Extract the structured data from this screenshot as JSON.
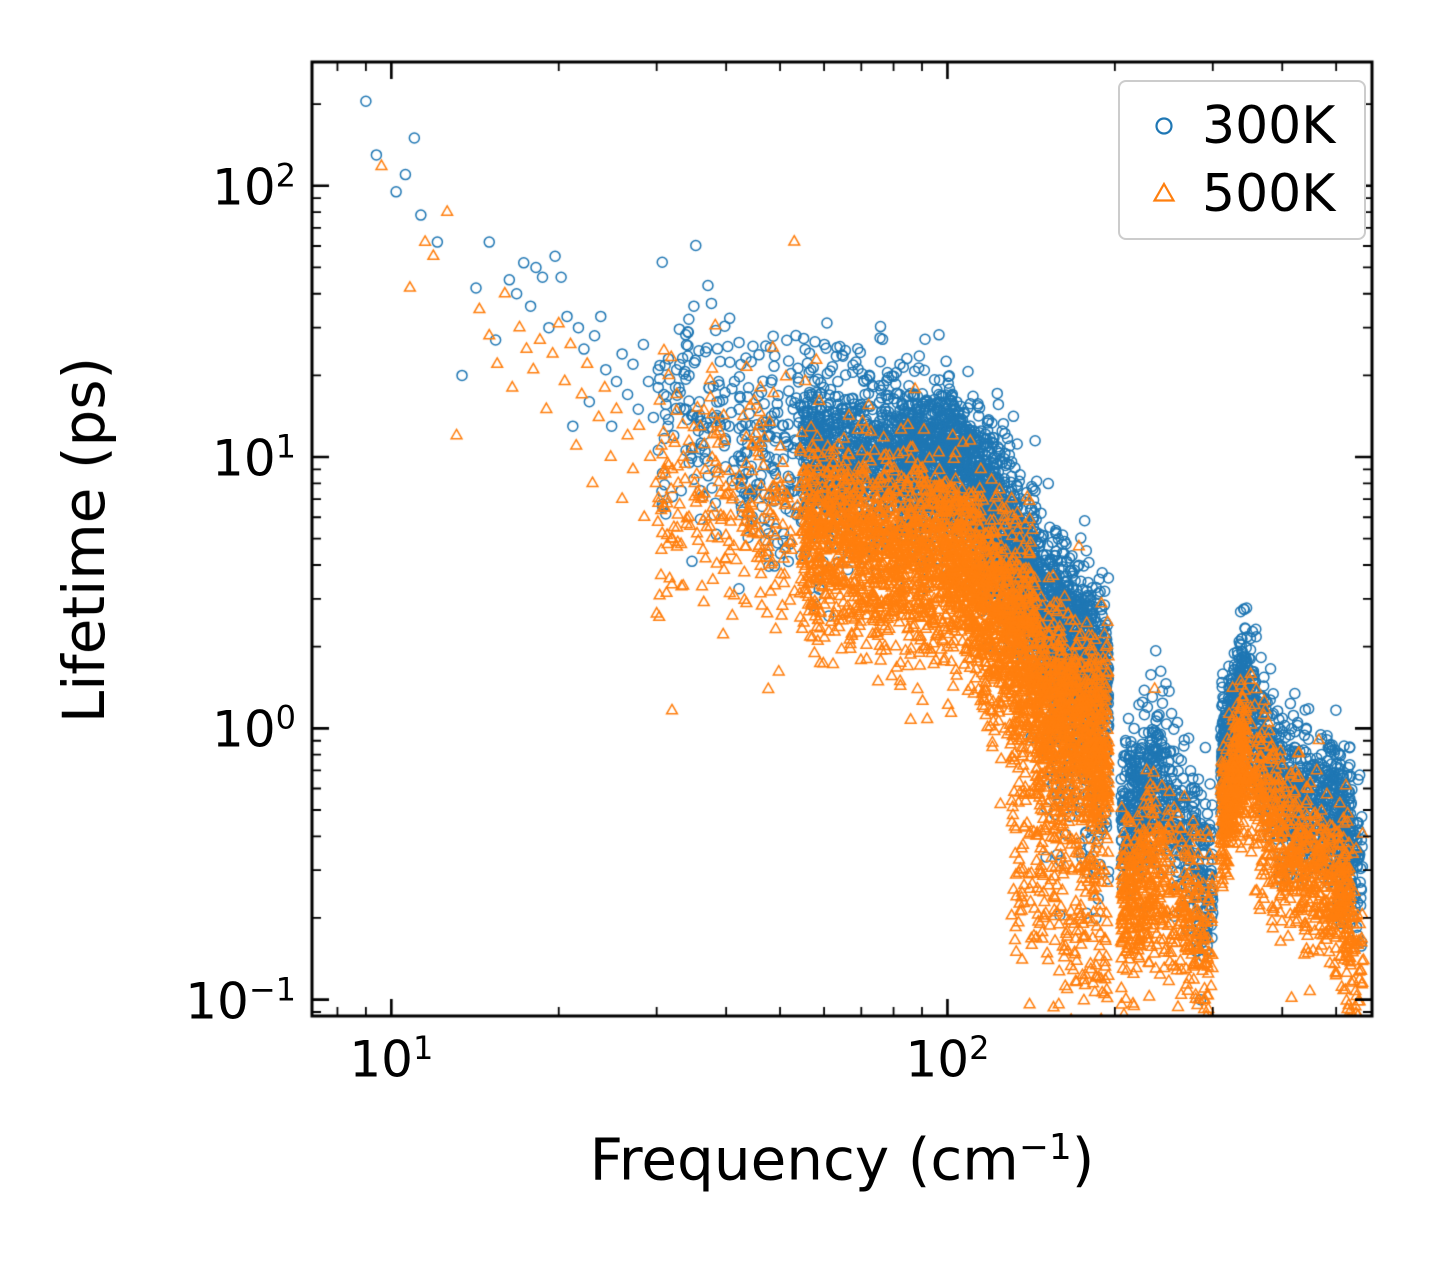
{
  "chart_data": {
    "type": "scatter",
    "title": "",
    "xlabel": "Frequency (cm⁻¹)",
    "xlabel_parts": {
      "pre": "Frequency (cm",
      "sup": "−1",
      "post": ")"
    },
    "ylabel": "Lifetime (ps)",
    "x_scale": "log",
    "y_scale": "log",
    "xlim": [
      7.2,
      580
    ],
    "ylim": [
      0.087,
      286
    ],
    "grid": false,
    "tick_direction": "in",
    "x_ticks": [
      {
        "value": 10,
        "base": "10",
        "exp": "1"
      },
      {
        "value": 100,
        "base": "10",
        "exp": "2"
      }
    ],
    "y_ticks": [
      {
        "value": 0.1,
        "base": "10",
        "exp": "−1"
      },
      {
        "value": 1,
        "base": "10",
        "exp": "0"
      },
      {
        "value": 10,
        "base": "10",
        "exp": "1"
      },
      {
        "value": 100,
        "base": "10",
        "exp": "2"
      }
    ],
    "legend": {
      "position": "upper right",
      "border_color": "#cccccc",
      "entries": [
        {
          "label": "300K",
          "color": "#1f77b4",
          "marker": "circle"
        },
        {
          "label": "500K",
          "color": "#ff7f0e",
          "marker": "triangle"
        }
      ]
    },
    "series": [
      {
        "name": "300K",
        "color": "#1f77b4",
        "marker": "circle",
        "marker_radius_px": 5,
        "points": [
          [
            9.0,
            205
          ],
          [
            9.4,
            130
          ],
          [
            10.2,
            95
          ],
          [
            10.6,
            110
          ],
          [
            11.0,
            150
          ],
          [
            11.3,
            78
          ],
          [
            12.1,
            62
          ],
          [
            13.4,
            20
          ],
          [
            14.2,
            42
          ],
          [
            15.0,
            62
          ],
          [
            15.4,
            27
          ],
          [
            16.3,
            45
          ],
          [
            16.8,
            40
          ],
          [
            17.3,
            52
          ],
          [
            17.8,
            36
          ],
          [
            18.2,
            50
          ],
          [
            18.7,
            46
          ],
          [
            19.2,
            30
          ],
          [
            19.7,
            55
          ],
          [
            20.2,
            46
          ],
          [
            20.7,
            33
          ],
          [
            21.2,
            13
          ],
          [
            21.7,
            30
          ],
          [
            22.2,
            25
          ],
          [
            22.7,
            16
          ],
          [
            23.2,
            28
          ],
          [
            23.8,
            33
          ],
          [
            24.3,
            21
          ],
          [
            24.9,
            13
          ],
          [
            25.4,
            19
          ],
          [
            26.0,
            24
          ],
          [
            26.6,
            17
          ],
          [
            27.2,
            22
          ],
          [
            27.8,
            15
          ],
          [
            28.4,
            26
          ],
          [
            29.0,
            19
          ],
          [
            29.6,
            14
          ],
          [
            30.2,
            21
          ],
          [
            30.9,
            17
          ],
          [
            31.5,
            23
          ],
          [
            32.2,
            12
          ],
          [
            32.9,
            18
          ],
          [
            33.6,
            15
          ],
          [
            34.3,
            20
          ],
          [
            35.0,
            36
          ],
          [
            35.8,
            16
          ],
          [
            36.5,
            13
          ],
          [
            37.3,
            18
          ],
          [
            38.1,
            14
          ],
          [
            38.9,
            16
          ],
          [
            39.7,
            11
          ],
          [
            40.5,
            13
          ],
          [
            41.4,
            19
          ],
          [
            42.2,
            15
          ]
        ],
        "density_bands": [
          {
            "x": [
              30,
              55
            ],
            "tau": [
              16,
              11
            ],
            "n": 200,
            "sigma_dex": 0.2
          },
          {
            "x": [
              42,
              62
            ],
            "tau": [
              9,
              8
            ],
            "n": 130,
            "sigma_dex": 0.22
          },
          {
            "x": [
              55,
              95
            ],
            "tau": [
              11,
              9
            ],
            "n": 1000,
            "sigma_dex": 0.16
          },
          {
            "x": [
              80,
              105
            ],
            "tau": [
              13,
              13.5
            ],
            "n": 150,
            "sigma_dex": 0.08
          },
          {
            "x": [
              95,
              115
            ],
            "tau": [
              10,
              8
            ],
            "n": 500,
            "sigma_dex": 0.14
          },
          {
            "x": [
              115,
              145
            ],
            "tau": [
              7,
              3.2
            ],
            "n": 700,
            "sigma_dex": 0.17
          },
          {
            "x": [
              145,
              195
            ],
            "tau": [
              2.7,
              1.5
            ],
            "n": 900,
            "sigma_dex": 0.16
          },
          {
            "x": [
              150,
              195
            ],
            "tau": [
              0.9,
              0.45
            ],
            "n": 130,
            "sigma_dex": 0.22
          },
          {
            "x": [
              205,
              240
            ],
            "tau": [
              0.42,
              0.72
            ],
            "n": 330,
            "sigma_dex": 0.14
          },
          {
            "x": [
              240,
              300
            ],
            "tau": [
              0.62,
              0.25
            ],
            "n": 300,
            "sigma_dex": 0.16
          },
          {
            "x": [
              310,
              345
            ],
            "tau": [
              0.8,
              1.45
            ],
            "n": 380,
            "sigma_dex": 0.11
          },
          {
            "x": [
              345,
              420
            ],
            "tau": [
              1.3,
              0.5
            ],
            "n": 350,
            "sigma_dex": 0.14
          },
          {
            "x": [
              420,
              530
            ],
            "tau": [
              0.62,
              0.42
            ],
            "n": 420,
            "sigma_dex": 0.13
          },
          {
            "x": [
              505,
              558
            ],
            "tau": [
              0.45,
              0.3
            ],
            "n": 120,
            "sigma_dex": 0.14
          }
        ]
      },
      {
        "name": "500K",
        "color": "#ff7f0e",
        "marker": "triangle",
        "marker_radius_px": 6.2,
        "points": [
          [
            9.6,
            118
          ],
          [
            10.8,
            42
          ],
          [
            11.5,
            62
          ],
          [
            11.9,
            55
          ],
          [
            12.6,
            80
          ],
          [
            13.1,
            12
          ],
          [
            14.4,
            35
          ],
          [
            15.0,
            28
          ],
          [
            15.5,
            22
          ],
          [
            16.0,
            40
          ],
          [
            16.5,
            18
          ],
          [
            17.0,
            30
          ],
          [
            17.5,
            25
          ],
          [
            18.0,
            21
          ],
          [
            18.5,
            27
          ],
          [
            19.0,
            15
          ],
          [
            19.5,
            24
          ],
          [
            20.0,
            31
          ],
          [
            20.5,
            19
          ],
          [
            21.0,
            26
          ],
          [
            21.5,
            11
          ],
          [
            22.0,
            17
          ],
          [
            22.5,
            22
          ],
          [
            23.0,
            8
          ],
          [
            23.6,
            14
          ],
          [
            24.2,
            18
          ],
          [
            24.8,
            10
          ],
          [
            25.4,
            15
          ],
          [
            26.0,
            7
          ],
          [
            26.6,
            12
          ],
          [
            27.2,
            9
          ],
          [
            27.9,
            13
          ],
          [
            28.5,
            6
          ],
          [
            29.2,
            10
          ],
          [
            29.9,
            8
          ],
          [
            30.6,
            11
          ],
          [
            31.3,
            7
          ],
          [
            32.0,
            9
          ],
          [
            32.8,
            8
          ],
          [
            33.5,
            10
          ],
          [
            34.3,
            6
          ],
          [
            35.1,
            8
          ],
          [
            36.0,
            7
          ],
          [
            36.9,
            5.5
          ],
          [
            37.8,
            6.5
          ],
          [
            38.7,
            5
          ],
          [
            39.6,
            6
          ],
          [
            40.6,
            4.5
          ]
        ],
        "density_bands": [
          {
            "x": [
              30,
              55
            ],
            "tau": [
              8,
              5.5
            ],
            "n": 250,
            "sigma_dex": 0.24
          },
          {
            "x": [
              55,
              95
            ],
            "tau": [
              5.2,
              4.2
            ],
            "n": 1100,
            "sigma_dex": 0.19
          },
          {
            "x": [
              95,
              115
            ],
            "tau": [
              4.5,
              3.4
            ],
            "n": 500,
            "sigma_dex": 0.17
          },
          {
            "x": [
              115,
              145
            ],
            "tau": [
              3,
              1.6
            ],
            "n": 700,
            "sigma_dex": 0.21
          },
          {
            "x": [
              145,
              195
            ],
            "tau": [
              1.3,
              0.85
            ],
            "n": 900,
            "sigma_dex": 0.19
          },
          {
            "x": [
              130,
              195
            ],
            "tau": [
              0.45,
              0.18
            ],
            "n": 300,
            "sigma_dex": 0.24
          },
          {
            "x": [
              205,
              240
            ],
            "tau": [
              0.2,
              0.32
            ],
            "n": 300,
            "sigma_dex": 0.17
          },
          {
            "x": [
              240,
              300
            ],
            "tau": [
              0.27,
              0.14
            ],
            "n": 250,
            "sigma_dex": 0.18
          },
          {
            "x": [
              310,
              345
            ],
            "tau": [
              0.45,
              0.85
            ],
            "n": 350,
            "sigma_dex": 0.13
          },
          {
            "x": [
              345,
              420
            ],
            "tau": [
              0.75,
              0.3
            ],
            "n": 300,
            "sigma_dex": 0.16
          },
          {
            "x": [
              420,
              530
            ],
            "tau": [
              0.33,
              0.22
            ],
            "n": 340,
            "sigma_dex": 0.17
          },
          {
            "x": [
              505,
              560
            ],
            "tau": [
              0.22,
              0.14
            ],
            "n": 110,
            "sigma_dex": 0.18
          }
        ]
      }
    ]
  }
}
